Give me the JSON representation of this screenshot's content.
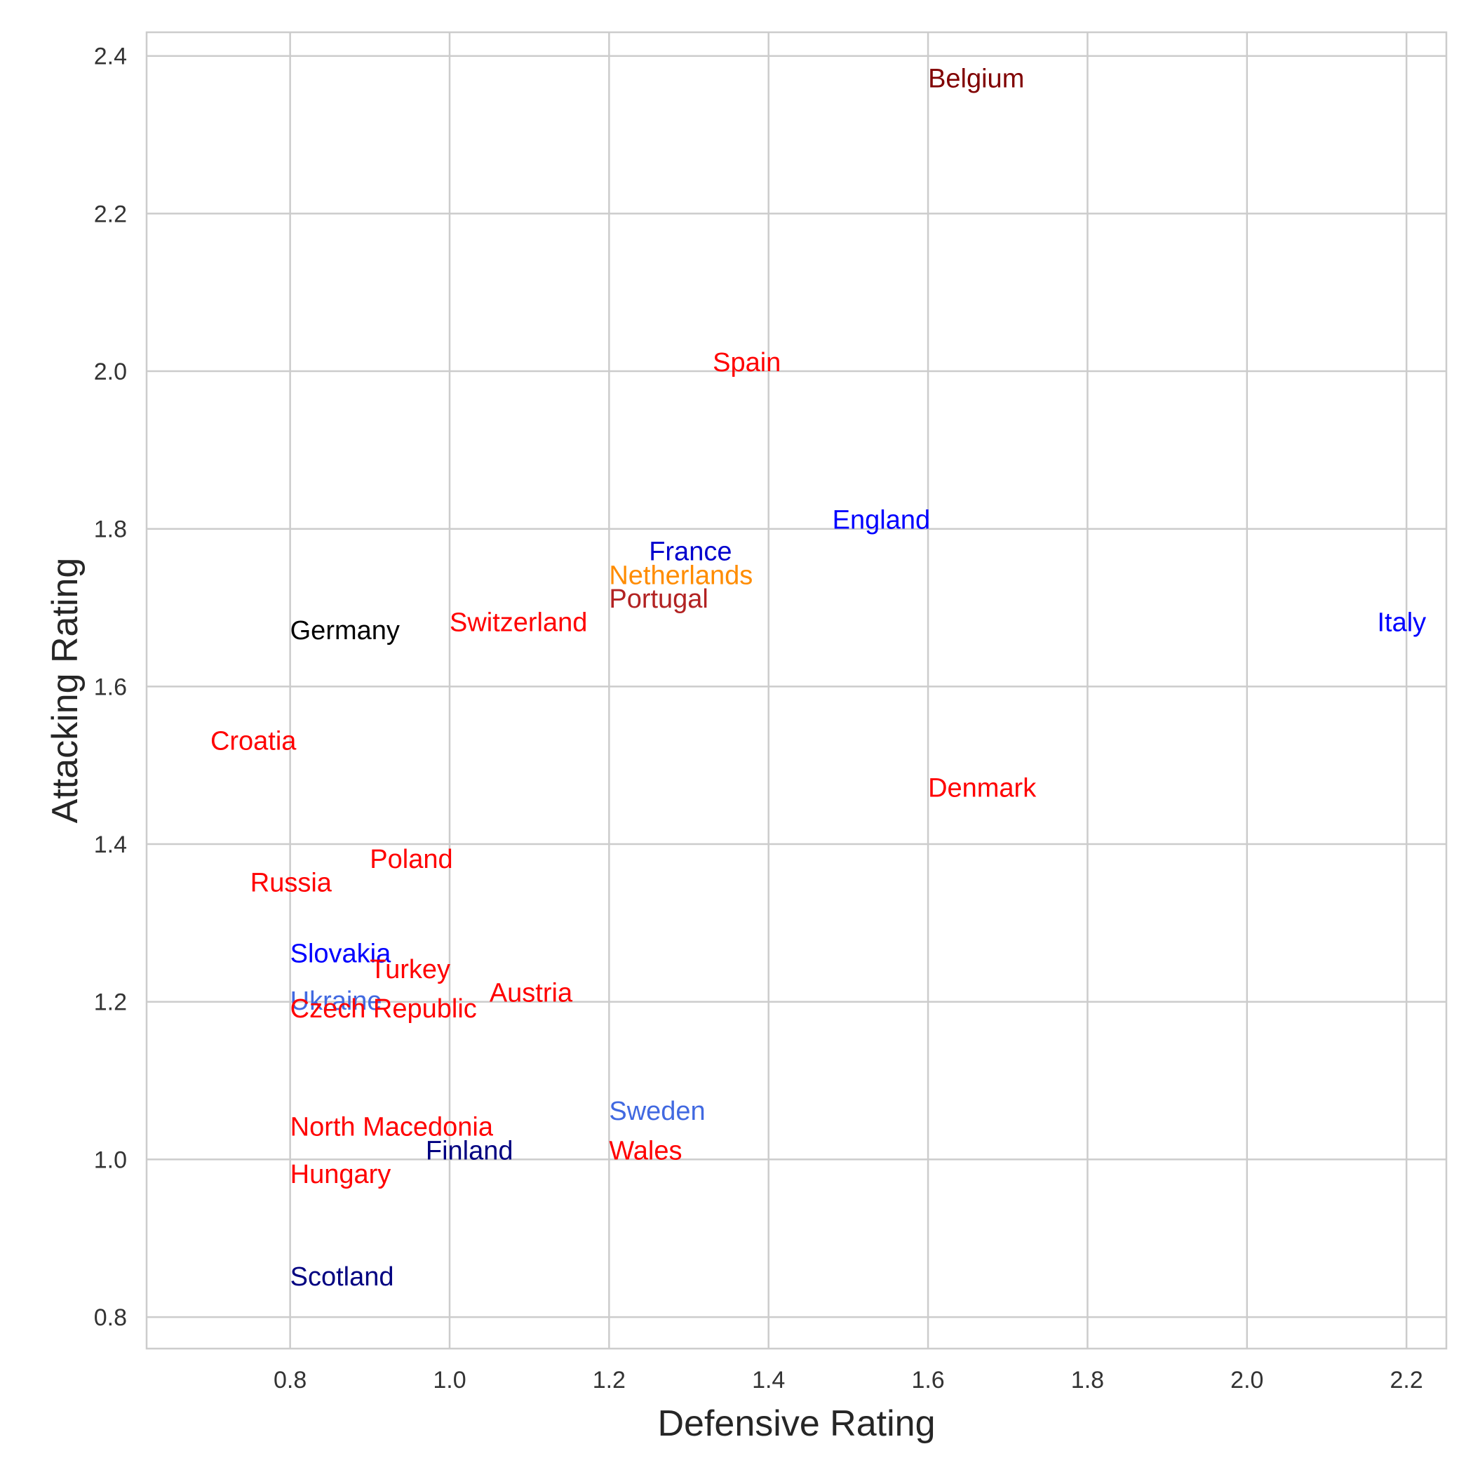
{
  "chart_data": {
    "type": "scatter",
    "xlabel": "Defensive Rating",
    "ylabel": "Attacking Rating",
    "xlim": [
      0.62,
      2.25
    ],
    "ylim": [
      0.76,
      2.43
    ],
    "xticks": [
      0.8,
      1.0,
      1.2,
      1.4,
      1.6,
      1.8,
      2.0,
      2.2
    ],
    "yticks": [
      0.8,
      1.0,
      1.2,
      1.4,
      1.6,
      1.8,
      2.0,
      2.2,
      2.4
    ],
    "xtick_labels": [
      "0.8",
      "1.0",
      "1.2",
      "1.4",
      "1.6",
      "1.8",
      "2.0",
      "2.2"
    ],
    "ytick_labels": [
      "0.8",
      "1.0",
      "1.2",
      "1.4",
      "1.6",
      "1.8",
      "2.0",
      "2.2",
      "2.4"
    ],
    "grid": true,
    "points": [
      {
        "label": "Belgium",
        "x": 1.6,
        "y": 2.36,
        "color": "#800000"
      },
      {
        "label": "Spain",
        "x": 1.33,
        "y": 2.0,
        "color": "#ff0000"
      },
      {
        "label": "England",
        "x": 1.48,
        "y": 1.8,
        "color": "#0000ff"
      },
      {
        "label": "France",
        "x": 1.25,
        "y": 1.76,
        "color": "#0000cd"
      },
      {
        "label": "Netherlands",
        "x": 1.2,
        "y": 1.73,
        "color": "#ff8c00"
      },
      {
        "label": "Portugal",
        "x": 1.2,
        "y": 1.7,
        "color": "#b22222"
      },
      {
        "label": "Switzerland",
        "x": 1.0,
        "y": 1.67,
        "color": "#ff0000"
      },
      {
        "label": "Germany",
        "x": 0.8,
        "y": 1.66,
        "color": "#000000"
      },
      {
        "label": "Italy",
        "x": 2.2,
        "y": 1.67,
        "color": "#0000ff"
      },
      {
        "label": "Croatia",
        "x": 0.7,
        "y": 1.52,
        "color": "#ff0000"
      },
      {
        "label": "Denmark",
        "x": 1.6,
        "y": 1.46,
        "color": "#ff0000"
      },
      {
        "label": "Poland",
        "x": 0.9,
        "y": 1.37,
        "color": "#ff0000"
      },
      {
        "label": "Russia",
        "x": 0.75,
        "y": 1.34,
        "color": "#ff0000"
      },
      {
        "label": "Slovakia",
        "x": 0.8,
        "y": 1.25,
        "color": "#0000ff"
      },
      {
        "label": "Turkey",
        "x": 0.9,
        "y": 1.23,
        "color": "#ff0000"
      },
      {
        "label": "Austria",
        "x": 1.05,
        "y": 1.2,
        "color": "#ff0000"
      },
      {
        "label": "Ukraine",
        "x": 0.8,
        "y": 1.19,
        "color": "#4169e1"
      },
      {
        "label": "Czech Republic",
        "x": 0.8,
        "y": 1.18,
        "color": "#ff0000"
      },
      {
        "label": "Sweden",
        "x": 1.2,
        "y": 1.05,
        "color": "#4169e1"
      },
      {
        "label": "North Macedonia",
        "x": 0.8,
        "y": 1.03,
        "color": "#ff0000"
      },
      {
        "label": "Wales",
        "x": 1.2,
        "y": 1.0,
        "color": "#ff0000"
      },
      {
        "label": "Finland",
        "x": 0.97,
        "y": 1.0,
        "color": "#000080"
      },
      {
        "label": "Hungary",
        "x": 0.8,
        "y": 0.97,
        "color": "#ff0000"
      },
      {
        "label": "Scotland",
        "x": 0.8,
        "y": 0.84,
        "color": "#000080"
      }
    ]
  }
}
